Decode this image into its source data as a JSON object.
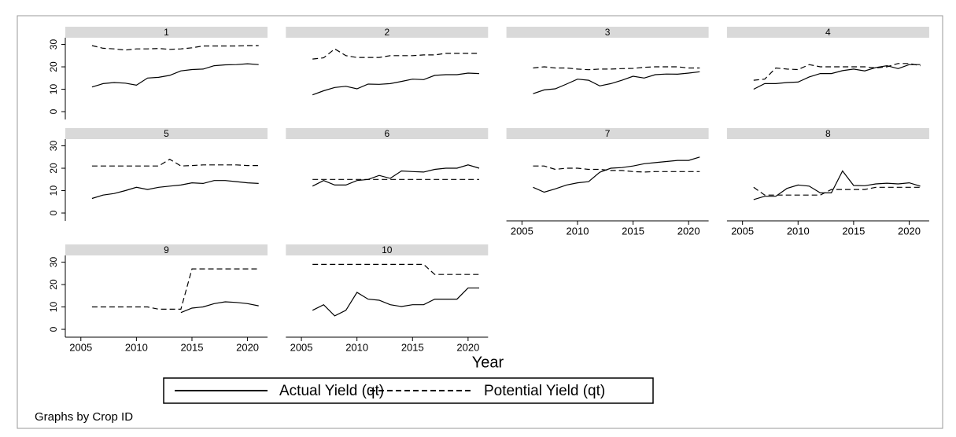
{
  "chart_data": {
    "type": "line",
    "x_label": "Year",
    "note": "Graphs by Crop ID",
    "x": [
      2006,
      2007,
      2008,
      2009,
      2010,
      2011,
      2012,
      2013,
      2014,
      2015,
      2016,
      2017,
      2018,
      2019,
      2020,
      2021
    ],
    "xlim": [
      2003.6,
      2021.8
    ],
    "xticks": [
      2005,
      2010,
      2015,
      2020
    ],
    "ylim": [
      -3.5,
      33
    ],
    "yticks": [
      0,
      10,
      20,
      30
    ],
    "series": [
      {
        "name": "Actual Yield (qt)",
        "color": "#000000",
        "dash": "solid"
      },
      {
        "name": "Potential Yield (qt)",
        "color": "#000000",
        "dash": "dashed"
      }
    ],
    "panels": [
      {
        "title": "1",
        "values": [
          [
            11,
            12.5,
            13,
            12.7,
            11.8,
            15,
            15.3,
            16.2,
            18.2,
            18.8,
            19,
            20.5,
            20.9,
            21,
            21.4,
            21
          ],
          [
            29.5,
            28.3,
            28,
            27.5,
            28,
            28,
            28.2,
            27.8,
            28,
            28.5,
            29.3,
            29.3,
            29.3,
            29.3,
            29.5,
            29.5
          ]
        ]
      },
      {
        "title": "2",
        "values": [
          [
            7.5,
            9.3,
            10.8,
            11.3,
            10.2,
            12.3,
            12.2,
            12.5,
            13.5,
            14.5,
            14.3,
            16.2,
            16.5,
            16.5,
            17.2,
            17
          ],
          [
            23.5,
            24,
            28,
            25,
            24.2,
            24.2,
            24.2,
            25,
            25,
            25,
            25.3,
            25.3,
            26,
            26,
            26,
            26
          ]
        ]
      },
      {
        "title": "3",
        "values": [
          [
            8,
            9.7,
            10.2,
            12.3,
            14.5,
            14,
            11.5,
            12.5,
            14,
            15.8,
            15,
            16.5,
            16.8,
            16.7,
            17.2,
            17.8
          ],
          [
            19.5,
            20,
            19.5,
            19.5,
            19,
            18.7,
            19,
            19,
            19.2,
            19.3,
            19.8,
            20,
            20,
            20,
            19.5,
            19.5
          ]
        ]
      },
      {
        "title": "4",
        "values": [
          [
            10,
            12.5,
            12.5,
            13,
            13.2,
            15.5,
            17,
            17,
            18.3,
            19,
            18.2,
            19.7,
            20.5,
            19.2,
            21,
            21
          ],
          [
            14,
            14.5,
            19.5,
            19,
            18.8,
            21,
            20,
            20,
            20,
            20,
            20,
            19.5,
            20,
            21.5,
            21.5,
            20.5
          ]
        ]
      },
      {
        "title": "5",
        "values": [
          [
            6.5,
            8,
            8.7,
            10,
            11.5,
            10.5,
            11.5,
            12,
            12.5,
            13.5,
            13.2,
            14.5,
            14.5,
            14,
            13.5,
            13.2
          ],
          [
            21,
            21,
            21,
            21,
            21,
            21,
            21,
            24,
            21,
            21.2,
            21.5,
            21.5,
            21.5,
            21.5,
            21.2,
            21.2
          ]
        ]
      },
      {
        "title": "6",
        "values": [
          [
            12,
            14.5,
            12.5,
            12.5,
            14.5,
            15,
            16.8,
            15.5,
            18.8,
            18.5,
            18.3,
            19.5,
            20,
            20,
            21.5,
            20
          ],
          [
            15,
            15,
            15,
            15,
            15,
            15,
            15,
            15,
            15,
            15,
            15,
            15,
            15,
            15,
            15,
            15
          ]
        ]
      },
      {
        "title": "7",
        "values": [
          [
            11.5,
            9.3,
            10.8,
            12.5,
            13.5,
            14,
            18.2,
            20,
            20.3,
            21,
            22,
            22.5,
            23,
            23.5,
            23.5,
            25
          ],
          [
            21,
            21,
            19.5,
            20,
            20,
            19.5,
            19.5,
            19,
            19,
            18.5,
            18.3,
            18.5,
            18.5,
            18.5,
            18.5,
            18.5
          ]
        ]
      },
      {
        "title": "8",
        "values": [
          [
            6,
            7.5,
            7.5,
            11,
            12.5,
            12,
            9,
            9,
            18.8,
            12.3,
            12.2,
            13,
            13.3,
            13,
            13.5,
            12
          ],
          [
            11.5,
            8,
            8,
            8,
            8,
            8,
            8,
            10.5,
            10.5,
            10.5,
            10.5,
            11.5,
            11.5,
            11.5,
            11.5,
            11.5
          ]
        ]
      },
      {
        "title": "9",
        "values": [
          [
            null,
            null,
            null,
            null,
            null,
            null,
            null,
            null,
            7.5,
            9.5,
            10,
            11.5,
            12.3,
            12,
            11.5,
            10.5
          ],
          [
            10,
            10,
            10,
            10,
            10,
            10,
            9,
            9,
            9,
            27,
            27,
            27,
            27,
            27,
            27,
            27
          ]
        ]
      },
      {
        "title": "10",
        "values": [
          [
            8.5,
            11,
            6,
            8.5,
            16.5,
            13.5,
            13,
            11,
            10.2,
            11,
            11,
            13.5,
            13.5,
            13.5,
            18.5,
            18.5
          ],
          [
            29,
            29,
            29,
            29,
            29,
            29,
            29,
            29,
            29,
            29,
            29,
            24.5,
            24.5,
            24.5,
            24.5,
            24.5
          ]
        ]
      }
    ]
  }
}
